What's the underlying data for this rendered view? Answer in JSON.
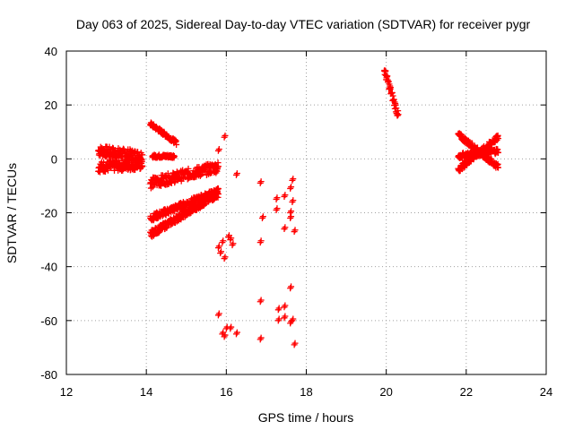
{
  "chart_data": {
    "type": "scatter",
    "title": "Day 063 of 2025, Sidereal Day-to-day VTEC variation (SDTVAR) for receiver pygr",
    "xlabel": "GPS time / hours",
    "ylabel": "SDTVAR / TECUs",
    "xlim": [
      12,
      24
    ],
    "ylim": [
      -80,
      40
    ],
    "xticks": [
      "12",
      "14",
      "16",
      "18",
      "20",
      "22",
      "24"
    ],
    "yticks": [
      "40",
      "20",
      "0",
      "-20",
      "-40",
      "-60",
      "-80"
    ],
    "grid": true,
    "marker": "plus",
    "color": "#ff0000",
    "series": [
      {
        "name": "cluster-12.8-13.9-a",
        "x_start": 12.8,
        "x_end": 13.9,
        "y_start": 3,
        "y_end": 1,
        "spread": 4
      },
      {
        "name": "cluster-12.8-13.9-b",
        "x_start": 12.8,
        "x_end": 13.9,
        "y_start": -3,
        "y_end": -2,
        "spread": 4
      },
      {
        "name": "track-14.1-14.7-falling",
        "x_start": 14.1,
        "x_end": 14.75,
        "y_start": 13,
        "y_end": 6,
        "spread": 1.5
      },
      {
        "name": "track-14.2-14.7-flat",
        "x_start": 14.15,
        "x_end": 14.7,
        "y_start": 1,
        "y_end": 1,
        "spread": 1.2
      },
      {
        "name": "track-14.1-15.8-upper",
        "x_start": 14.1,
        "x_end": 15.8,
        "y_start": -9,
        "y_end": -3,
        "spread": 4
      },
      {
        "name": "track-14.1-15.8-mid",
        "x_start": 14.1,
        "x_end": 15.8,
        "y_start": -22,
        "y_end": -12,
        "spread": 2.5
      },
      {
        "name": "track-14.1-15.8-lower",
        "x_start": 14.1,
        "x_end": 15.8,
        "y_start": -28,
        "y_end": -13,
        "spread": 2.5
      },
      {
        "name": "track-19.9-20.3",
        "x_start": 19.95,
        "x_end": 20.3,
        "y_start": 33,
        "y_end": 16,
        "spread": 3
      },
      {
        "name": "track-21.8-22.8-a",
        "x_start": 21.8,
        "x_end": 22.8,
        "y_start": 9,
        "y_end": -3,
        "spread": 2
      },
      {
        "name": "track-21.8-22.8-b",
        "x_start": 21.8,
        "x_end": 22.8,
        "y_start": -4,
        "y_end": 8,
        "spread": 2
      },
      {
        "name": "track-21.8-22.8-c",
        "x_start": 21.8,
        "x_end": 22.8,
        "y_start": 1,
        "y_end": 3,
        "spread": 2
      }
    ],
    "points": [
      [
        15.8,
        3
      ],
      [
        15.95,
        8
      ],
      [
        16.25,
        -6
      ],
      [
        15.8,
        -33
      ],
      [
        15.85,
        -35
      ],
      [
        15.9,
        -31
      ],
      [
        15.95,
        -37
      ],
      [
        16.05,
        -29
      ],
      [
        16.1,
        -30
      ],
      [
        16.15,
        -32
      ],
      [
        15.8,
        -58
      ],
      [
        15.9,
        -65
      ],
      [
        15.95,
        -66
      ],
      [
        16.0,
        -63
      ],
      [
        16.1,
        -63
      ],
      [
        16.25,
        -65
      ],
      [
        16.85,
        -9
      ],
      [
        16.9,
        -22
      ],
      [
        16.85,
        -31
      ],
      [
        16.85,
        -53
      ],
      [
        16.85,
        -67
      ],
      [
        17.25,
        -15
      ],
      [
        17.25,
        -19
      ],
      [
        17.3,
        -56
      ],
      [
        17.3,
        -60
      ],
      [
        17.45,
        -14
      ],
      [
        17.45,
        -26
      ],
      [
        17.45,
        -55
      ],
      [
        17.45,
        -59
      ],
      [
        17.6,
        -11
      ],
      [
        17.65,
        -8
      ],
      [
        17.6,
        -20
      ],
      [
        17.6,
        -22
      ],
      [
        17.65,
        -16
      ],
      [
        17.7,
        -27
      ],
      [
        17.6,
        -48
      ],
      [
        17.6,
        -61
      ],
      [
        17.65,
        -60
      ],
      [
        17.7,
        -69
      ]
    ]
  }
}
